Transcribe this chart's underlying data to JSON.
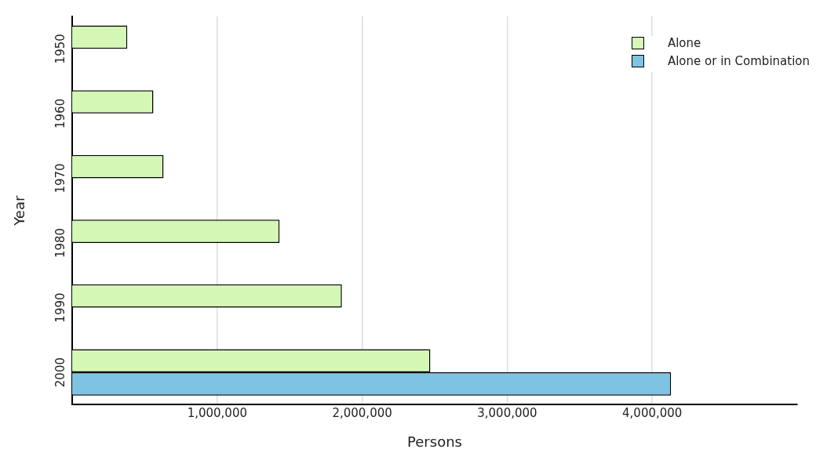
{
  "chart_data": {
    "type": "bar",
    "orientation": "horizontal",
    "xlabel": "Persons",
    "ylabel": "Year",
    "categories": [
      "1950",
      "1960",
      "1970",
      "1980",
      "1990",
      "2000"
    ],
    "series": [
      {
        "name": "Alone",
        "color": "#d4f7b5",
        "values": [
          380000,
          560000,
          630000,
          1430000,
          1860000,
          2470000
        ]
      },
      {
        "name": "Alone or in Combination",
        "color": "#7ec3e2",
        "values": [
          null,
          null,
          null,
          null,
          null,
          4130000
        ]
      }
    ],
    "xlim": [
      0,
      5000000
    ],
    "xticks": [
      {
        "value": 1000000,
        "label": "1,000,000"
      },
      {
        "value": 2000000,
        "label": "2,000,000"
      },
      {
        "value": 3000000,
        "label": "3,000,000"
      },
      {
        "value": 4000000,
        "label": "4,000,000"
      }
    ],
    "grid": "x",
    "legend": "top right"
  }
}
